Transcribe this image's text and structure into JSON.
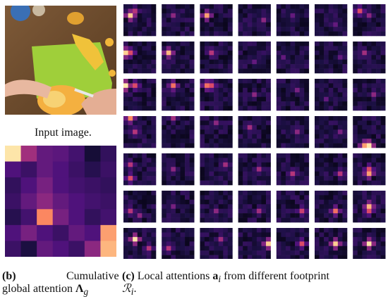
{
  "input_caption": "Input image.",
  "caption_b": {
    "tag": "(b)",
    "line1": "Cumulative",
    "line2_text": "global attention ",
    "line2_symbol": "Λ",
    "line2_sub": "g"
  },
  "caption_c": {
    "tag": "(c)",
    "line1_text": "Local attentions ",
    "line1_symbol": "a",
    "line1_sub": "i",
    "line1_rest": " from different footprint",
    "line2_symbol": "ℛ",
    "line2_sub": "i",
    "line2_rest": "."
  },
  "colors": {
    "colormap": [
      "#000004",
      "#1c1044",
      "#4f127b",
      "#812581",
      "#b5367a",
      "#e55064",
      "#fb8761",
      "#fec287",
      "#fcfdbf"
    ],
    "background": "#ffffff"
  },
  "global_attention": {
    "rows": 7,
    "cols": 7,
    "values": [
      [
        0.95,
        0.45,
        0.3,
        0.28,
        0.22,
        0.1,
        0.18
      ],
      [
        0.25,
        0.2,
        0.3,
        0.25,
        0.2,
        0.15,
        0.2
      ],
      [
        0.18,
        0.25,
        0.35,
        0.25,
        0.22,
        0.2,
        0.18
      ],
      [
        0.2,
        0.3,
        0.4,
        0.3,
        0.25,
        0.22,
        0.2
      ],
      [
        0.15,
        0.22,
        0.75,
        0.35,
        0.25,
        0.18,
        0.22
      ],
      [
        0.25,
        0.35,
        0.25,
        0.2,
        0.3,
        0.25,
        0.8
      ],
      [
        0.2,
        0.12,
        0.3,
        0.25,
        0.2,
        0.4,
        0.85
      ]
    ]
  },
  "local_attentions": {
    "grid_rows": 7,
    "grid_cols": 7,
    "tile_rows": 7,
    "tile_cols": 7,
    "hotspots": [
      [
        [
          [
            2,
            1,
            0.9
          ],
          [
            1,
            2,
            0.5
          ]
        ],
        [
          [
            2,
            2,
            0.4
          ]
        ],
        [
          [
            2,
            1,
            0.8
          ]
        ],
        [
          [
            3,
            5,
            0.4
          ]
        ],
        [
          [
            2,
            3,
            0.3
          ]
        ],
        [
          [
            4,
            4,
            0.3
          ]
        ],
        [
          [
            1,
            1,
            0.6
          ],
          [
            2,
            3,
            0.4
          ]
        ]
      ],
      [
        [
          [
            2,
            0,
            0.9
          ],
          [
            2,
            1,
            0.6
          ]
        ],
        [
          [
            2,
            1,
            0.85
          ]
        ],
        [
          [
            2,
            2,
            0.5
          ]
        ],
        [
          [
            4,
            3,
            0.3
          ]
        ],
        [
          [
            3,
            1,
            0.3
          ]
        ],
        [
          [
            3,
            5,
            0.3
          ]
        ],
        [
          [
            2,
            2,
            0.45
          ]
        ]
      ],
      [
        [
          [
            1,
            0,
            0.95
          ],
          [
            1,
            2,
            0.6
          ]
        ],
        [
          [
            1,
            2,
            0.7
          ]
        ],
        [
          [
            1,
            1,
            0.7
          ],
          [
            1,
            2,
            0.6
          ]
        ],
        [
          [
            3,
            3,
            0.4
          ]
        ],
        [
          [
            2,
            4,
            0.35
          ]
        ],
        [
          [
            4,
            2,
            0.3
          ]
        ],
        [
          [
            3,
            4,
            0.4
          ]
        ]
      ],
      [
        [
          [
            0,
            1,
            0.75
          ],
          [
            3,
            2,
            0.5
          ]
        ],
        [
          [
            0,
            2,
            0.45
          ]
        ],
        [
          [
            1,
            3,
            0.4
          ]
        ],
        [
          [
            2,
            2,
            0.45
          ]
        ],
        [
          [
            3,
            4,
            0.4
          ]
        ],
        [
          [
            3,
            5,
            0.35
          ]
        ],
        [
          [
            6,
            3,
            0.95
          ],
          [
            6,
            2,
            0.8
          ]
        ]
      ],
      [
        [
          [
            2,
            1,
            0.5
          ],
          [
            5,
            1,
            0.6
          ]
        ],
        [
          [
            3,
            2,
            0.4
          ]
        ],
        [
          [
            2,
            5,
            0.45
          ]
        ],
        [
          [
            3,
            4,
            0.45
          ]
        ],
        [
          [
            4,
            3,
            0.5
          ]
        ],
        [
          [
            4,
            5,
            0.5
          ]
        ],
        [
          [
            4,
            3,
            0.8
          ],
          [
            3,
            3,
            0.6
          ]
        ]
      ],
      [
        [
          [
            4,
            1,
            0.5
          ],
          [
            5,
            3,
            0.4
          ]
        ],
        [
          [
            3,
            2,
            0.35
          ]
        ],
        [
          [
            4,
            3,
            0.4
          ]
        ],
        [
          [
            4,
            4,
            0.45
          ]
        ],
        [
          [
            4,
            5,
            0.55
          ]
        ],
        [
          [
            4,
            4,
            0.7
          ]
        ],
        [
          [
            3,
            3,
            0.85
          ],
          [
            4,
            3,
            0.6
          ]
        ]
      ],
      [
        [
          [
            2,
            2,
            0.95
          ],
          [
            4,
            5,
            0.5
          ]
        ],
        [
          [
            4,
            1,
            0.5
          ]
        ],
        [
          [
            2,
            4,
            0.45
          ]
        ],
        [
          [
            3,
            6,
            0.9
          ]
        ],
        [
          [
            3,
            5,
            0.6
          ]
        ],
        [
          [
            3,
            4,
            0.9
          ]
        ],
        [
          [
            3,
            3,
            0.95
          ]
        ]
      ]
    ]
  }
}
